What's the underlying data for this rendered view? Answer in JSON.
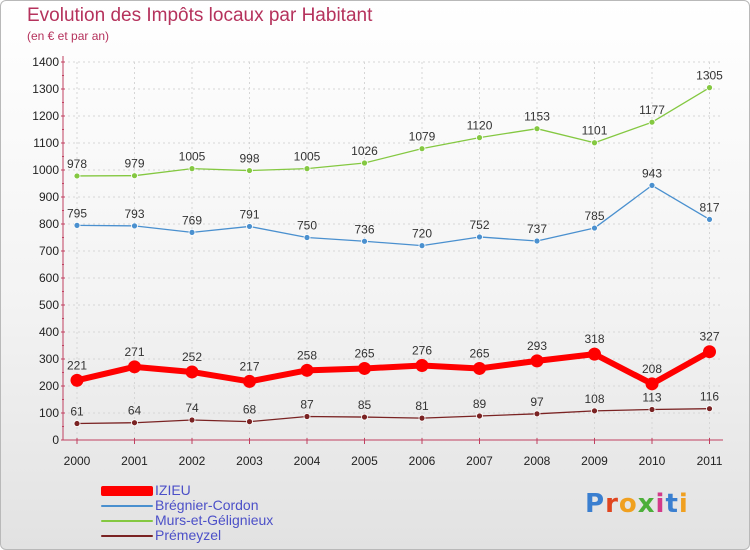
{
  "title": "Evolution des Impôts locaux par Habitant",
  "subtitle": "(en € et par an)",
  "logo": "Proxiti",
  "chart_data": {
    "type": "line",
    "x": [
      "2000",
      "2001",
      "2002",
      "2003",
      "2004",
      "2005",
      "2006",
      "2007",
      "2008",
      "2009",
      "2010",
      "2011"
    ],
    "ylim": [
      0,
      1400
    ],
    "yticks": [
      0,
      100,
      200,
      300,
      400,
      500,
      600,
      700,
      800,
      900,
      1000,
      1100,
      1200,
      1300,
      1400
    ],
    "grid": true,
    "legend_position": "bottom-left",
    "series": [
      {
        "name": "IZIEU",
        "color": "#ff0000",
        "values": [
          221,
          271,
          252,
          217,
          258,
          265,
          276,
          265,
          293,
          318,
          208,
          327
        ]
      },
      {
        "name": "Brégnier-Cordon",
        "color": "#4a90cf",
        "values": [
          795,
          793,
          769,
          791,
          750,
          736,
          720,
          752,
          737,
          785,
          943,
          817
        ]
      },
      {
        "name": "Murs-et-Gélignieux",
        "color": "#84c841",
        "values": [
          978,
          979,
          1005,
          998,
          1005,
          1026,
          1079,
          1120,
          1153,
          1101,
          1177,
          1305
        ]
      },
      {
        "name": "Prémeyzel",
        "color": "#7a2323",
        "values": [
          61,
          64,
          74,
          68,
          87,
          85,
          81,
          89,
          97,
          108,
          113,
          116
        ]
      }
    ]
  }
}
